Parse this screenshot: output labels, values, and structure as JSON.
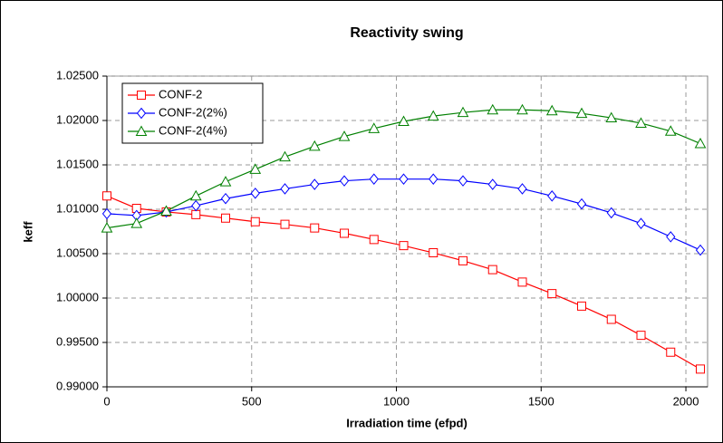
{
  "chart_data": {
    "type": "line",
    "title": "Reactivity swing",
    "x_label": "Irradiation time (efpd)",
    "y_label": "keff",
    "x": [
      0,
      102.5,
      205,
      307.5,
      410,
      512.5,
      615,
      717.5,
      820,
      922.5,
      1025,
      1127.5,
      1230,
      1332.5,
      1435,
      1537.5,
      1640,
      1742.5,
      1845,
      1947.5,
      2050
    ],
    "series": [
      {
        "name": "CONF-2",
        "color": "#ff0000",
        "marker": "square",
        "values": [
          1.0115,
          1.0101,
          1.0097,
          1.0094,
          1.009,
          1.0086,
          1.0083,
          1.0079,
          1.0073,
          1.0066,
          1.0059,
          1.0051,
          1.0042,
          1.0032,
          1.0018,
          1.0005,
          0.9991,
          0.9976,
          0.9958,
          0.9939,
          0.992
        ]
      },
      {
        "name": "CONF-2(2%)",
        "color": "#0000ff",
        "marker": "diamond",
        "values": [
          1.0095,
          1.0093,
          1.0097,
          1.0104,
          1.0112,
          1.0118,
          1.0123,
          1.0128,
          1.0132,
          1.0134,
          1.0134,
          1.0134,
          1.0132,
          1.0128,
          1.0123,
          1.0115,
          1.0106,
          1.0096,
          1.0084,
          1.0069,
          1.0054
        ]
      },
      {
        "name": "CONF-2(4%)",
        "color": "#008000",
        "marker": "triangle",
        "values": [
          1.0079,
          1.0084,
          1.0098,
          1.0115,
          1.0131,
          1.0145,
          1.0159,
          1.0171,
          1.0182,
          1.0191,
          1.0199,
          1.0205,
          1.0209,
          1.0212,
          1.0212,
          1.0211,
          1.0208,
          1.0203,
          1.0197,
          1.0188,
          1.0174
        ]
      }
    ],
    "xlim": [
      0,
      2075
    ],
    "xticks": [
      0,
      500,
      1000,
      1500,
      2000
    ],
    "ylim": [
      0.99,
      1.025
    ],
    "yticks": [
      {
        "value": 0.99,
        "label": "0.99000"
      },
      {
        "value": 0.995,
        "label": "0.99500"
      },
      {
        "value": 1.0,
        "label": "1.00000"
      },
      {
        "value": 1.005,
        "label": "1.00500"
      },
      {
        "value": 1.01,
        "label": "1.01000"
      },
      {
        "value": 1.015,
        "label": "1.01500"
      },
      {
        "value": 1.02,
        "label": "1.02000"
      },
      {
        "value": 1.025,
        "label": "1.02500"
      }
    ],
    "grid": true,
    "legend": "top-left"
  }
}
